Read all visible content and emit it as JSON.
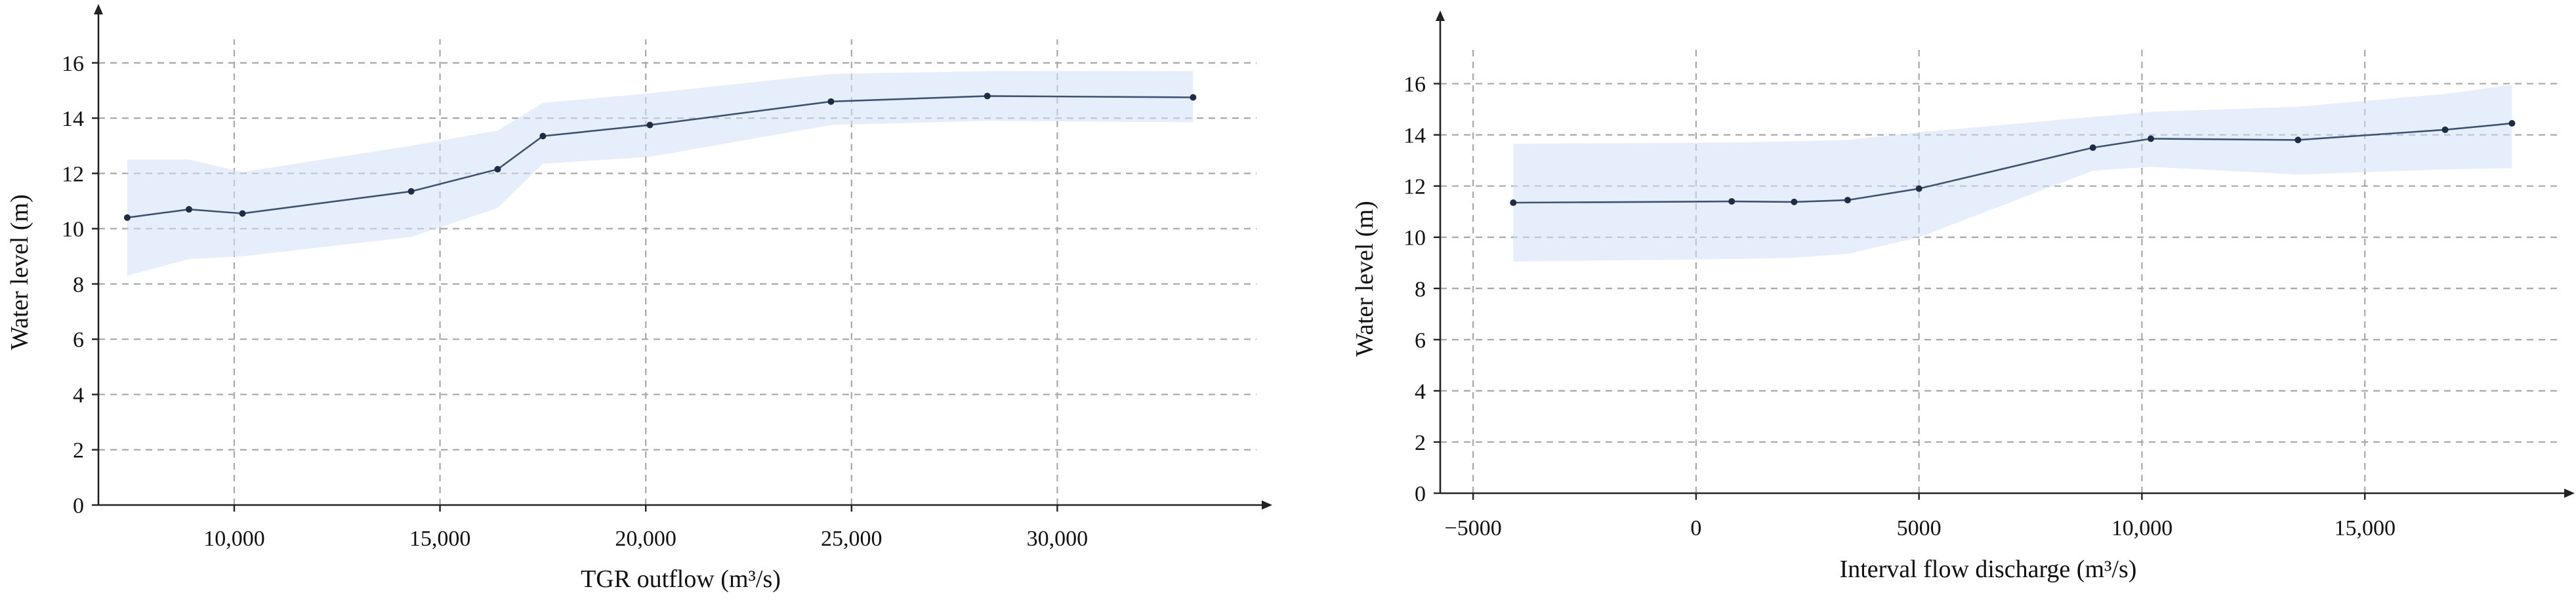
{
  "chart_data": [
    {
      "type": "line",
      "xlabel": "TGR outflow (m³/s)",
      "ylabel": "Water level (m)",
      "xlim": [
        6700,
        35000
      ],
      "ylim": [
        0,
        17.8
      ],
      "x_ticks": [
        10000,
        15000,
        20000,
        25000,
        30000
      ],
      "x_tick_labels": [
        "10,000",
        "15,000",
        "20,000",
        "25,000",
        "30,000"
      ],
      "y_ticks": [
        0,
        2,
        4,
        6,
        8,
        10,
        12,
        14,
        16
      ],
      "y_tick_labels": [
        "0",
        "2",
        "4",
        "6",
        "8",
        "10",
        "12",
        "14",
        "16"
      ],
      "grid": true,
      "series": [
        {
          "x": [
            7400,
            8900,
            10200,
            14300,
            16400,
            17500,
            20100,
            24500,
            28300,
            33300
          ],
          "values": [
            10.4,
            10.7,
            10.55,
            11.35,
            12.15,
            13.35,
            13.75,
            14.6,
            14.8,
            14.75
          ]
        }
      ],
      "band": {
        "x": [
          7400,
          8900,
          10200,
          14300,
          16400,
          17500,
          20100,
          24500,
          28300,
          33300
        ],
        "upper": [
          12.5,
          12.5,
          12.05,
          13.0,
          13.55,
          14.55,
          14.9,
          15.6,
          15.7,
          15.7
        ],
        "lower": [
          8.3,
          8.9,
          9.0,
          9.7,
          10.75,
          12.35,
          12.6,
          13.75,
          13.9,
          13.85
        ]
      },
      "colors": {
        "line": "#3d5371",
        "point": "#1e2c46",
        "band": "#cfe0f5",
        "grid": "#a8a8a8"
      }
    },
    {
      "type": "line",
      "xlabel": "Interval flow discharge (m³/s)",
      "ylabel": "Water level (m)",
      "xlim": [
        -6400,
        19500
      ],
      "ylim": [
        0,
        18.5
      ],
      "x_ticks": [
        -5000,
        0,
        5000,
        10000,
        15000
      ],
      "x_tick_labels": [
        "−5000",
        "0",
        "5000",
        "10,000",
        "15,000"
      ],
      "y_ticks": [
        0,
        2,
        4,
        6,
        8,
        10,
        12,
        14,
        16
      ],
      "y_tick_labels": [
        "0",
        "2",
        "4",
        "6",
        "8",
        "10",
        "12",
        "14",
        "16"
      ],
      "grid": true,
      "series": [
        {
          "x": [
            -4100,
            800,
            2200,
            3400,
            5000,
            8900,
            10200,
            13500,
            16800,
            18300
          ],
          "values": [
            11.35,
            11.4,
            11.38,
            11.45,
            11.9,
            13.5,
            13.85,
            13.8,
            14.2,
            14.45
          ]
        }
      ],
      "band": {
        "x": [
          -4100,
          800,
          2200,
          3400,
          5000,
          8900,
          10200,
          13500,
          16800,
          18300
        ],
        "upper": [
          13.65,
          13.7,
          13.75,
          13.8,
          14.1,
          14.7,
          14.9,
          15.1,
          15.6,
          15.95
        ],
        "lower": [
          9.05,
          9.15,
          9.2,
          9.35,
          10.0,
          12.6,
          12.75,
          12.45,
          12.65,
          12.7
        ]
      },
      "colors": {
        "line": "#3d5371",
        "point": "#1e2c46",
        "band": "#cfe0f5",
        "grid": "#a8a8a8"
      }
    }
  ]
}
